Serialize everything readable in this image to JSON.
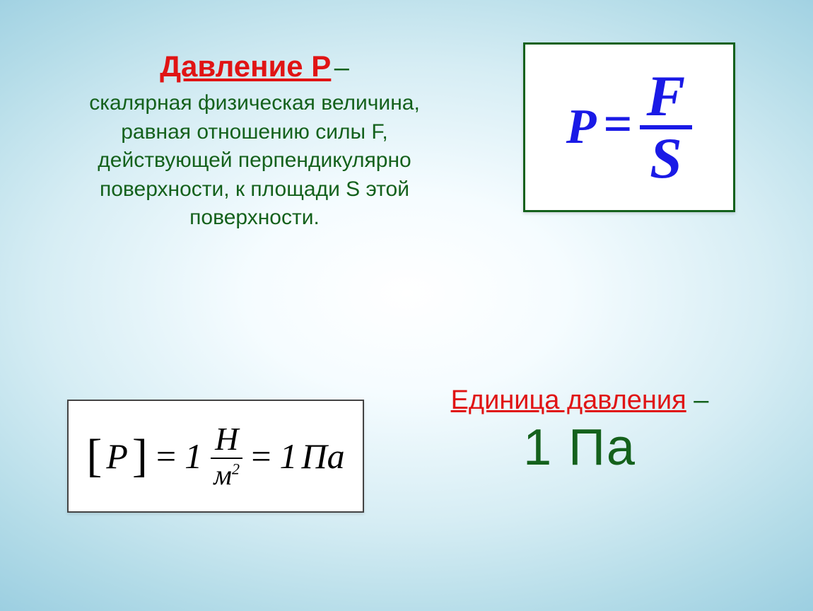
{
  "colors": {
    "title": "#e01414",
    "body": "#14611c",
    "formula": "#1a1ae6",
    "box_border": "#14611c",
    "unit_box_border": "#444444",
    "background_center": "#ffffff",
    "background_edge": "#8cc6dc"
  },
  "typography": {
    "title_fontsize": 42,
    "body_fontsize": 30,
    "formula_fontsize": 78,
    "unit_label_fontsize": 38,
    "unit_value_fontsize": 72,
    "font_family": "Comic Sans MS"
  },
  "definition": {
    "title": "Давление P",
    "dash": " –",
    "body": "скалярная физическая величина, равная отношению силы F, действующей перпендикулярно поверхности, к площади S этой поверхности."
  },
  "formula": {
    "lhs": "P",
    "eq": "=",
    "numerator": "F",
    "denominator": "S"
  },
  "unit_derivation": {
    "open": "[",
    "sym": "P",
    "close": "]",
    "eq": "=",
    "one1": "1",
    "num": "Н",
    "den_base": "м",
    "den_sup": "2",
    "one2": "1",
    "unit": "Па"
  },
  "unit_text": {
    "label": "Единица давления",
    "dash": " –",
    "value": "1 Па"
  }
}
